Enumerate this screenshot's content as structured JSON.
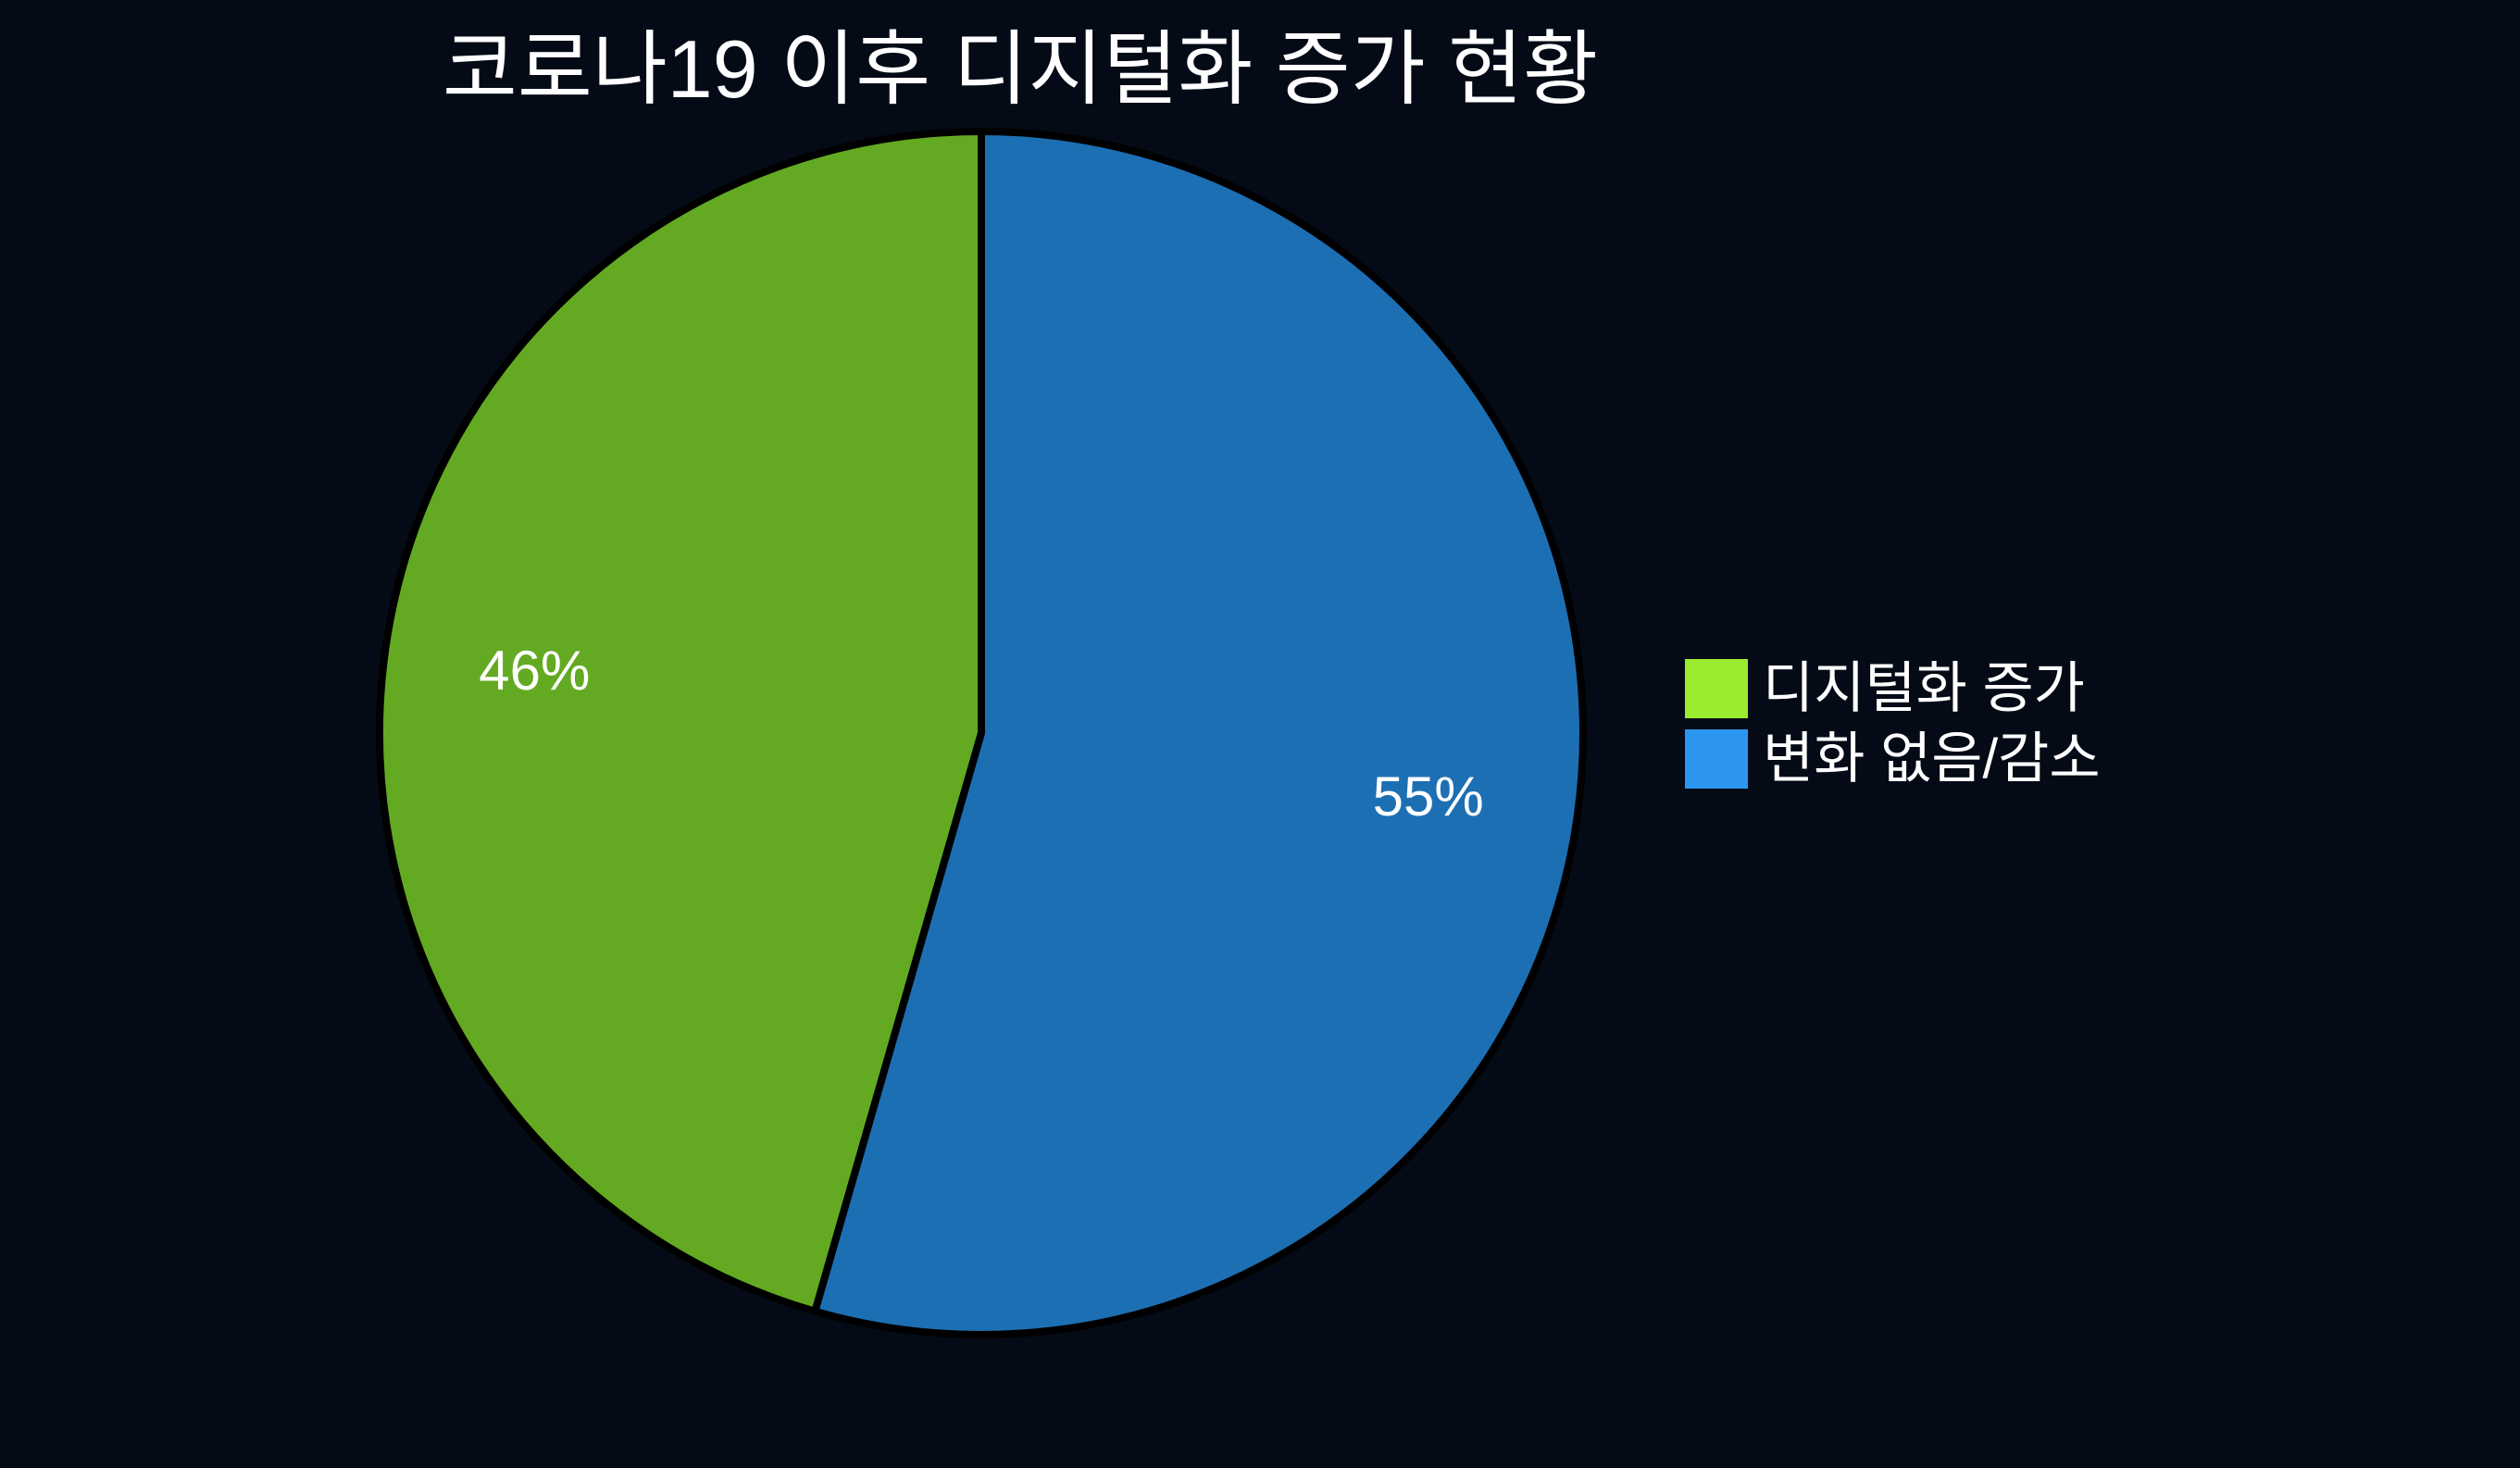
{
  "chart_data": {
    "type": "pie",
    "title": "코로나19 이후 디지털화 증가 현황",
    "slices": [
      {
        "label": "디지털화 증가",
        "value": 46,
        "pct_label": "46%",
        "slice_color": "#63AA22",
        "legend_color": "#99EC2F"
      },
      {
        "label": "변화 없음/감소",
        "value": 55,
        "pct_label": "55%",
        "slice_color": "#1D6FB3",
        "legend_color": "#2C96EE"
      }
    ],
    "start_angle": "12-oclock",
    "direction": "counterclockwise",
    "legend_position": "center-right",
    "grid": "off",
    "background_color": "#040B17",
    "text_color": "#FFFFFF",
    "wedge_edge_color": "#000000"
  }
}
